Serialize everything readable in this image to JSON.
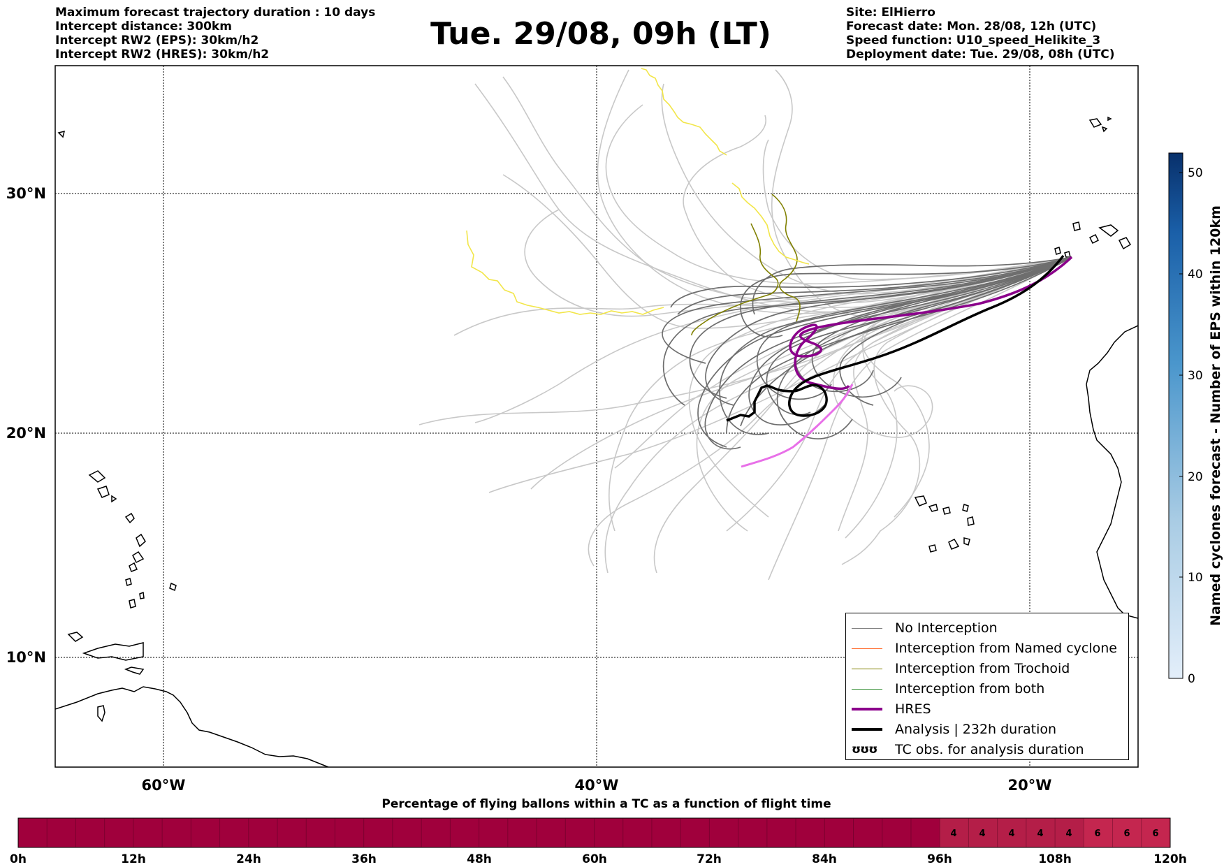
{
  "header": {
    "left_lines": [
      "Maximum forecast trajectory duration : 10 days",
      "Intercept distance: 300km",
      "Intercept RW2 (EPS):  30km/h2",
      "Intercept RW2 (HRES): 30km/h2"
    ],
    "right_lines": [
      "Site: ElHierro",
      "Forecast date: Mon. 28/08, 12h (UTC)",
      "Speed function: U10_speed_Helikite_3",
      "Deployment date: Tue. 29/08, 08h (UTC)"
    ],
    "title": "Tue. 29/08, 09h (LT)"
  },
  "map": {
    "lat_labels": [
      "30°N",
      "20°N",
      "10°N"
    ],
    "lon_labels": [
      "60°W",
      "40°W",
      "20°W"
    ]
  },
  "legend": {
    "items": [
      {
        "label": "No Interception",
        "color": "#808080",
        "style": "thin"
      },
      {
        "label": "Interception from Named cyclone",
        "color": "#ff6a2a",
        "style": "thin"
      },
      {
        "label": "Interception from Trochoid",
        "color": "#808000",
        "style": "thin"
      },
      {
        "label": "Interception from both",
        "color": "#2e8b2e",
        "style": "thin"
      },
      {
        "label": "HRES",
        "color": "#8b008b",
        "style": "thick"
      },
      {
        "label": "Analysis | 232h duration",
        "color": "#000000",
        "style": "thick"
      },
      {
        "label": "TC obs. for analysis duration",
        "color": "#000000",
        "style": "symbol",
        "symbol": "ʊʊʊ"
      }
    ]
  },
  "colorbar_right": {
    "label": "Named cyclones forecast - Number of EPS within 120km",
    "ticks": [
      "0",
      "10",
      "20",
      "30",
      "40",
      "50"
    ],
    "color_low": "#e3eefa",
    "color_high": "#08306b"
  },
  "bottom_bar": {
    "title": "Percentage of flying ballons within a TC as a function of flight time",
    "hour_labels": [
      "0h",
      "12h",
      "24h",
      "36h",
      "48h",
      "60h",
      "72h",
      "84h",
      "96h",
      "108h",
      "120h"
    ],
    "cell_values": [
      "4",
      "4",
      "4",
      "4",
      "4",
      "6",
      "6",
      "6"
    ],
    "base_color": "#a0003c",
    "mid_color": "#b41e48",
    "high_color": "#c4264f"
  }
}
